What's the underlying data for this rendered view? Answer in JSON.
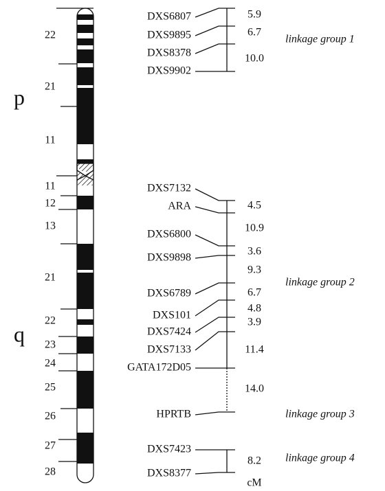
{
  "arms": [
    "p",
    "q"
  ],
  "bands": [
    "22",
    "21",
    "11",
    "11",
    "12",
    "13",
    "21",
    "22",
    "23",
    "24",
    "25",
    "26",
    "27",
    "28"
  ],
  "markers": [
    "DXS6807",
    "DXS9895",
    "DXS8378",
    "DXS9902",
    "DXS7132",
    "ARA",
    "DXS6800",
    "DXS9898",
    "DXS6789",
    "DXS101",
    "DXS7424",
    "DXS7133",
    "GATA172D05",
    "HPRTB",
    "DXS7423",
    "DXS8377"
  ],
  "distances": [
    "5.9",
    "6.7",
    "10.0",
    "4.5",
    "10.9",
    "3.6",
    "9.3",
    "6.7",
    "4.8",
    "3.9",
    "11.4",
    "14.0",
    "8.2"
  ],
  "linkage_groups": [
    "linkage group 1",
    "linkage group 2",
    "linkage group 3",
    "linkage group 4"
  ],
  "unit": "cM"
}
